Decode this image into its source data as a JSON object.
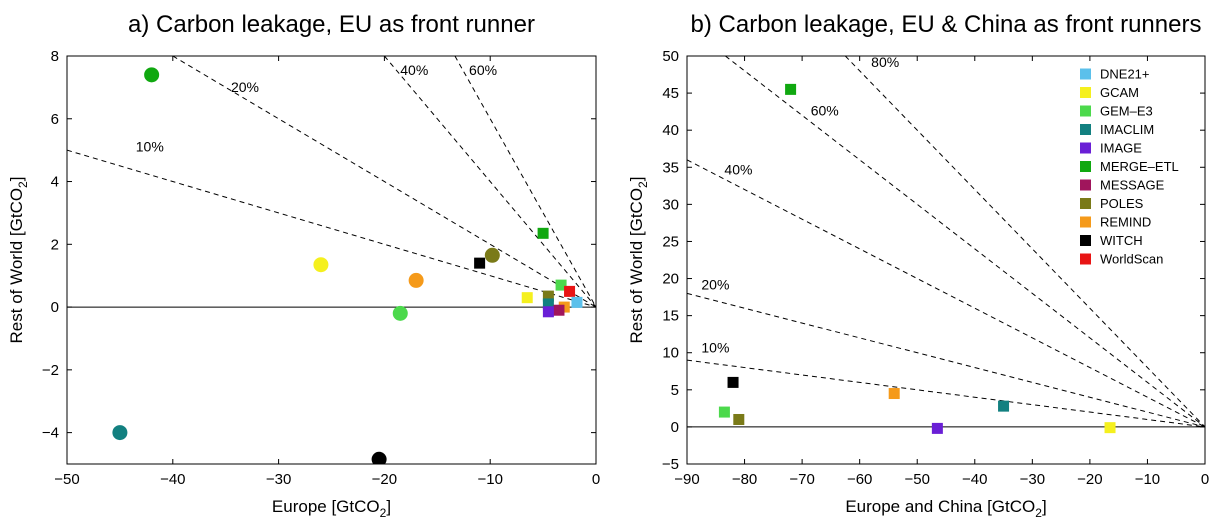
{
  "chart_data": [
    {
      "type": "scatter",
      "title": "a) Carbon leakage, EU as front runner",
      "xlabel": "Europe [GtCO",
      "xlabel_sub": "2",
      "xlabel_end": "]",
      "ylabel": "Rest of World [GtCO",
      "ylabel_sub": "2",
      "ylabel_end": "]",
      "xlim": [
        -50,
        0
      ],
      "ylim": [
        -5,
        8
      ],
      "xticks": [
        -50,
        -40,
        -30,
        -20,
        -10,
        0
      ],
      "yticks": [
        -4,
        -2,
        0,
        2,
        4,
        6,
        8
      ],
      "leakage_lines": [
        {
          "label": "10%",
          "ratio": 0.1,
          "label_x": -43.5,
          "label_y": 4.95
        },
        {
          "label": "20%",
          "ratio": 0.2,
          "label_x": -34.5,
          "label_y": 6.85
        },
        {
          "label": "40%",
          "ratio": 0.4,
          "label_x": -18.5,
          "label_y": 7.4
        },
        {
          "label": "60%",
          "ratio": 0.6,
          "label_x": -12.0,
          "label_y": 7.4
        }
      ],
      "points": [
        {
          "model": "MERGE-ETL",
          "marker": "circle",
          "x": -42,
          "y": 7.4
        },
        {
          "model": "GCAM",
          "marker": "circle",
          "x": -26,
          "y": 1.35
        },
        {
          "model": "REMIND",
          "marker": "circle",
          "x": -17,
          "y": 0.85
        },
        {
          "model": "GEM-E3",
          "marker": "circle",
          "x": -18.5,
          "y": -0.2
        },
        {
          "model": "POLES",
          "marker": "circle",
          "x": -9.8,
          "y": 1.65
        },
        {
          "model": "IMACLIM",
          "marker": "circle",
          "x": -45,
          "y": -4.0
        },
        {
          "model": "WITCH",
          "marker": "circle",
          "x": -20.5,
          "y": -4.85
        },
        {
          "model": "WITCH",
          "marker": "square",
          "x": -11,
          "y": 1.4
        },
        {
          "model": "MERGE-ETL",
          "marker": "square",
          "x": -5.0,
          "y": 2.35
        },
        {
          "model": "GCAM",
          "marker": "square",
          "x": -6.5,
          "y": 0.3
        },
        {
          "model": "GEM-E3",
          "marker": "square",
          "x": -3.3,
          "y": 0.7
        },
        {
          "model": "WorldScan",
          "marker": "square",
          "x": -2.5,
          "y": 0.5
        },
        {
          "model": "DNE21+",
          "marker": "square",
          "x": -1.8,
          "y": 0.15
        },
        {
          "model": "POLES",
          "marker": "square",
          "x": -4.5,
          "y": 0.35
        },
        {
          "model": "IMACLIM",
          "marker": "square",
          "x": -4.5,
          "y": 0.1
        },
        {
          "model": "REMIND",
          "marker": "square",
          "x": -3.0,
          "y": 0.0
        },
        {
          "model": "MESSAGE",
          "marker": "square",
          "x": -3.5,
          "y": -0.1
        },
        {
          "model": "IMAGE",
          "marker": "square",
          "x": -4.5,
          "y": -0.15
        }
      ]
    },
    {
      "type": "scatter",
      "title": "b) Carbon leakage, EU & China as front runners",
      "xlabel": "Europe and China [GtCO",
      "xlabel_sub": "2",
      "xlabel_end": "]",
      "ylabel": "Rest of World [GtCO",
      "ylabel_sub": "2",
      "ylabel_end": "]",
      "xlim": [
        -90,
        0
      ],
      "ylim": [
        -5,
        50
      ],
      "xticks": [
        -90,
        -80,
        -70,
        -60,
        -50,
        -40,
        -30,
        -20,
        -10,
        0
      ],
      "yticks": [
        -5,
        0,
        5,
        10,
        15,
        20,
        25,
        30,
        35,
        40,
        45,
        50
      ],
      "leakage_lines": [
        {
          "label": "10%",
          "ratio": 0.1,
          "label_x": -87.5,
          "label_y": 10.0
        },
        {
          "label": "20%",
          "ratio": 0.2,
          "label_x": -87.5,
          "label_y": 18.5
        },
        {
          "label": "40%",
          "ratio": 0.4,
          "label_x": -83.5,
          "label_y": 34.0
        },
        {
          "label": "60%",
          "ratio": 0.6,
          "label_x": -68.5,
          "label_y": 42.0
        },
        {
          "label": "80%",
          "ratio": 0.8,
          "label_x": -58.0,
          "label_y": 48.5
        }
      ],
      "points": [
        {
          "model": "MERGE-ETL",
          "marker": "square",
          "x": -72,
          "y": 45.5
        },
        {
          "model": "WITCH",
          "marker": "square",
          "x": -82,
          "y": 6.0
        },
        {
          "model": "GEM-E3",
          "marker": "square",
          "x": -83.5,
          "y": 2.0
        },
        {
          "model": "POLES",
          "marker": "square",
          "x": -81,
          "y": 1.0
        },
        {
          "model": "REMIND",
          "marker": "square",
          "x": -54,
          "y": 4.5
        },
        {
          "model": "IMAGE",
          "marker": "square",
          "x": -46.5,
          "y": -0.2
        },
        {
          "model": "IMACLIM",
          "marker": "square",
          "x": -35,
          "y": 2.8
        },
        {
          "model": "GCAM",
          "marker": "square",
          "x": -16.5,
          "y": -0.1
        }
      ],
      "legend": {
        "placement": "top-right",
        "entries": [
          {
            "name": "DNE21+",
            "color": "#5bc0eb"
          },
          {
            "name": "GCAM",
            "color": "#f5f01e"
          },
          {
            "name": "GEM–E3",
            "color": "#4cd94c"
          },
          {
            "name": "IMACLIM",
            "color": "#128080"
          },
          {
            "name": "IMAGE",
            "color": "#6a1fd6"
          },
          {
            "name": "MERGE–ETL",
            "color": "#10a810"
          },
          {
            "name": "MESSAGE",
            "color": "#a0155c"
          },
          {
            "name": "POLES",
            "color": "#7a7a18"
          },
          {
            "name": "REMIND",
            "color": "#f59a1a"
          },
          {
            "name": "WITCH",
            "color": "#000000"
          },
          {
            "name": "WorldScan",
            "color": "#e81414"
          }
        ]
      }
    }
  ],
  "model_colors": {
    "DNE21+": "#5bc0eb",
    "GCAM": "#f5f01e",
    "GEM-E3": "#4cd94c",
    "IMACLIM": "#128080",
    "IMAGE": "#6a1fd6",
    "MERGE-ETL": "#10a810",
    "MESSAGE": "#a0155c",
    "POLES": "#7a7a18",
    "REMIND": "#f59a1a",
    "WITCH": "#000000",
    "WorldScan": "#e81414"
  }
}
